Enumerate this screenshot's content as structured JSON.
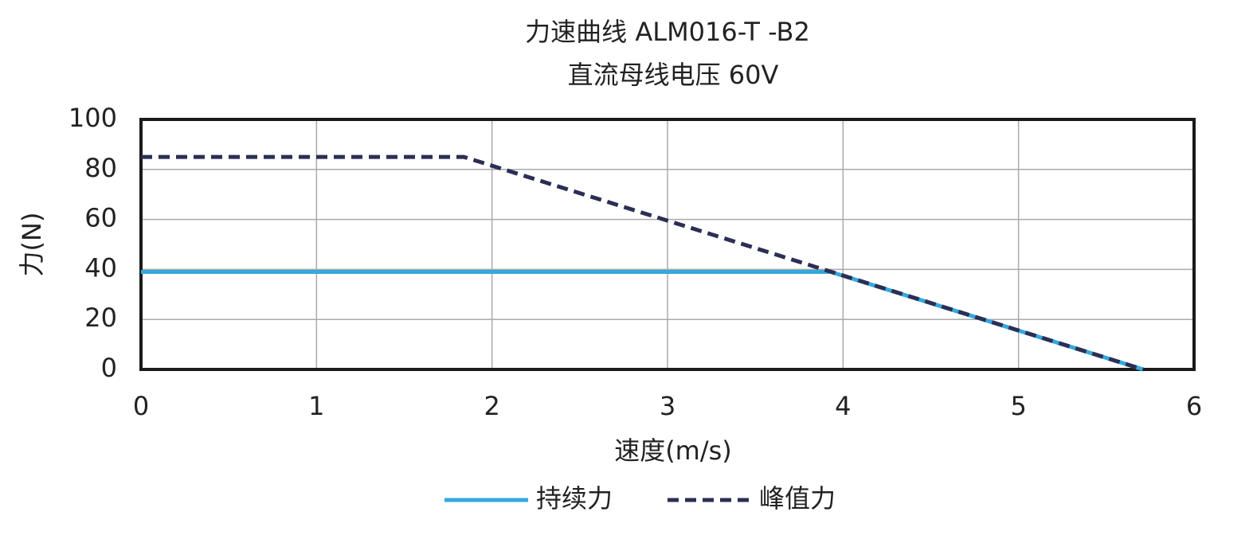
{
  "chart_data": {
    "type": "line",
    "title": "力速曲线 ALM016-T -B2",
    "subtitle": "直流母线电压 60V",
    "x_label": "速度(m/s)",
    "y_label": "力(N)",
    "xlim": [
      0,
      6
    ],
    "xticks": [
      0,
      1,
      2,
      3,
      4,
      5,
      6
    ],
    "ylim": [
      0,
      100
    ],
    "yticks": [
      0,
      20,
      40,
      60,
      80,
      100
    ],
    "grid": true,
    "legend": "bottom",
    "series": [
      {
        "name": "持续力",
        "color": "#35a8dc",
        "dash": false,
        "x": [
          0,
          3.93,
          5.71
        ],
        "values": [
          39,
          39,
          0
        ]
      },
      {
        "name": "峰值力",
        "color": "#2b2f55",
        "dash": true,
        "x": [
          0,
          1.84,
          5.71
        ],
        "values": [
          85,
          85,
          0
        ]
      }
    ]
  }
}
